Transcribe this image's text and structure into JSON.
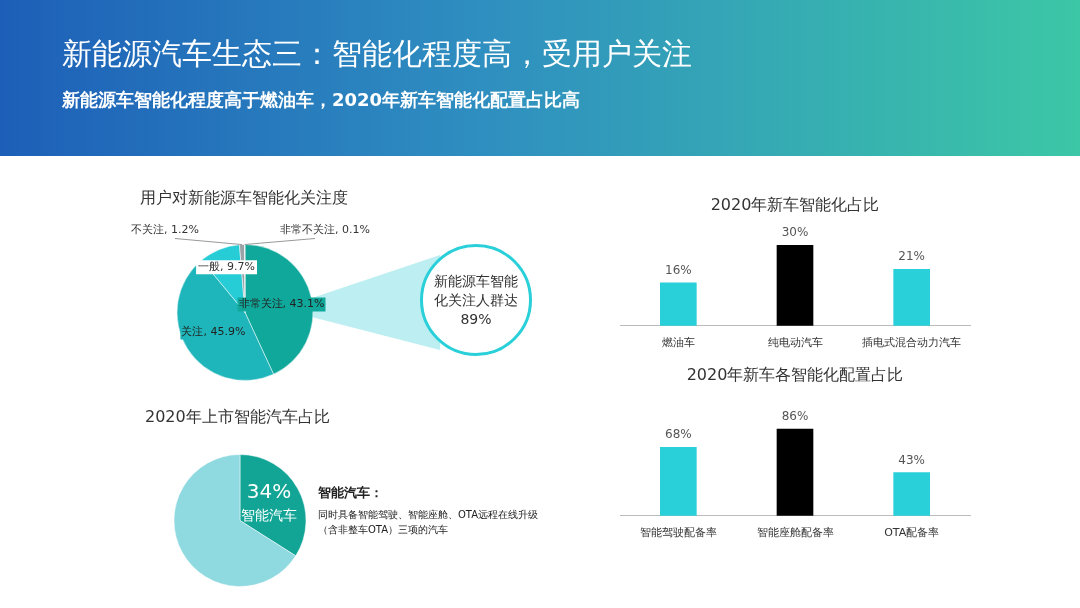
{
  "chart_data": [
    {
      "type": "other",
      "title": "新能源汽车生态三：智能化程度高，受用户关注",
      "subtitle": "新能源车智能化程度高于燃油车，2020年新车智能化配置占比高"
    },
    {
      "type": "pie",
      "title": "用户对新能源车智能化关注度",
      "categories": [
        "非常关注",
        "关注",
        "一般",
        "不关注",
        "非常不关注"
      ],
      "values": [
        43.1,
        45.9,
        9.7,
        1.2,
        0.1
      ],
      "value_labels": [
        "43.1%",
        "45.9%",
        "9.7%",
        "1.2%",
        "0.1%"
      ],
      "colors": [
        "#10a89b",
        "#1fb6bb",
        "#26ccd6",
        "#9aa3a8",
        "#c9ced1"
      ],
      "annotations": [
        "新能源车智能化关注人群达89%"
      ]
    },
    {
      "type": "pie",
      "title": "2020年上市智能汽车占比",
      "categories": [
        "智能汽车",
        null
      ],
      "values": [
        34,
        66
      ],
      "value_labels": [
        "34%",
        null
      ],
      "colors": [
        "#12a596",
        "#8fd9e1"
      ],
      "annotations": [
        "智能汽车：",
        "同时具备智能驾驶、智能座舱、OTA远程在线升级（含非整车OTA）三项的汽车"
      ]
    },
    {
      "type": "bar",
      "title": "2020年新车智能化占比",
      "categories": [
        "燃油车",
        "纯电动汽车",
        "插电式混合动力汽车"
      ],
      "values": [
        16,
        30,
        21
      ],
      "value_labels": [
        "16%",
        "30%",
        "21%"
      ],
      "colors": [
        "#29cfd9",
        "#000000",
        "#29cfd9"
      ],
      "tick_labels": "x"
    },
    {
      "type": "bar",
      "title": "2020年新车各智能化配置占比",
      "categories": [
        "智能驾驶配备率",
        "智能座舱配备率",
        "OTA配备率"
      ],
      "values": [
        68,
        86,
        43
      ],
      "value_labels": [
        "68%",
        "86%",
        "43%"
      ],
      "colors": [
        "#29cfd9",
        "#000000",
        "#29cfd9"
      ],
      "tick_labels": "x"
    }
  ]
}
